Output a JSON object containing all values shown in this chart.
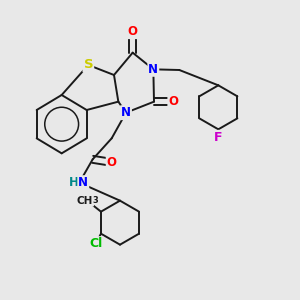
{
  "background_color": "#e8e8e8",
  "bond_color": "#1a1a1a",
  "atom_colors": {
    "S": "#cccc00",
    "N": "#0000ff",
    "O": "#ff0000",
    "F": "#cc00cc",
    "Cl": "#00bb00",
    "H": "#008888",
    "C": "#1a1a1a"
  },
  "figsize": [
    3.0,
    3.0
  ],
  "dpi": 100
}
